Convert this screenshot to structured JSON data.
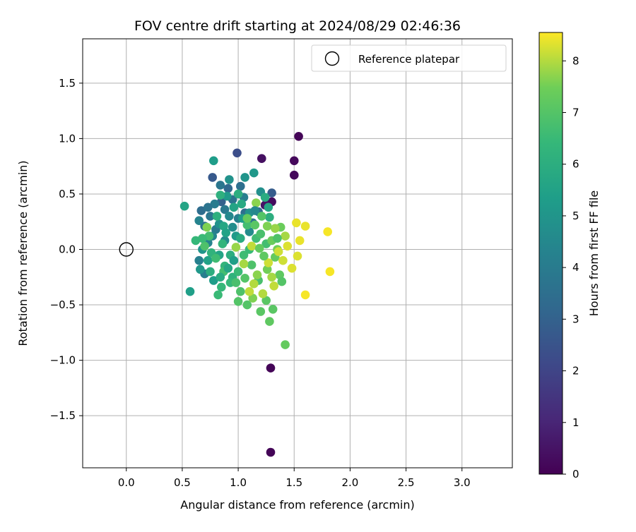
{
  "chart_data": {
    "type": "scatter",
    "title": "FOV centre drift starting at 2024/08/29 02:46:36",
    "xlabel": "Angular distance from reference (arcmin)",
    "ylabel": "Rotation from reference (arcmin)",
    "xlim": [
      -0.39,
      3.45
    ],
    "ylim": [
      -1.97,
      1.9
    ],
    "xticks": [
      "0.0",
      "0.5",
      "1.0",
      "1.5",
      "2.0",
      "2.5",
      "3.0"
    ],
    "yticks": [
      "1.5",
      "1.0",
      "0.5",
      "0.0",
      "−0.5",
      "−1.0",
      "−1.5"
    ],
    "grid": true,
    "legend": {
      "position": "top-right",
      "entries": [
        "Reference platepar"
      ]
    },
    "reference_point": {
      "x": 0.0,
      "y": 0.0
    },
    "colorbar": {
      "label": "Hours from first FF file",
      "range": [
        0,
        8.55
      ],
      "ticks": [
        "0",
        "1",
        "2",
        "3",
        "4",
        "5",
        "6",
        "7",
        "8"
      ],
      "colormap": "viridis"
    },
    "points": [
      [
        1.54,
        1.02,
        0.1
      ],
      [
        1.5,
        0.8,
        0.2
      ],
      [
        1.5,
        0.67,
        0.2
      ],
      [
        1.21,
        0.82,
        0.4
      ],
      [
        1.3,
        0.43,
        0.3
      ],
      [
        1.24,
        0.4,
        0.5
      ],
      [
        1.29,
        -1.07,
        0.1
      ],
      [
        1.29,
        -1.83,
        0.1
      ],
      [
        0.99,
        0.87,
        2.3
      ],
      [
        0.77,
        0.65,
        2.7
      ],
      [
        1.3,
        0.51,
        2.8
      ],
      [
        0.91,
        0.55,
        3.2
      ],
      [
        0.85,
        0.43,
        3.0
      ],
      [
        1.02,
        0.57,
        3.5
      ],
      [
        1.18,
        0.34,
        3.3
      ],
      [
        0.67,
        0.35,
        3.4
      ],
      [
        0.95,
        0.45,
        3.6
      ],
      [
        1.06,
        0.33,
        3.4
      ],
      [
        1.13,
        0.24,
        3.7
      ],
      [
        0.7,
        0.21,
        3.6
      ],
      [
        0.75,
        0.3,
        3.8
      ],
      [
        0.88,
        0.36,
        3.9
      ],
      [
        0.8,
        0.18,
        4.0
      ],
      [
        1.05,
        0.47,
        4.1
      ],
      [
        1.0,
        0.28,
        4.2
      ],
      [
        0.65,
        0.26,
        4.3
      ],
      [
        0.73,
        0.06,
        4.3
      ],
      [
        0.65,
        -0.1,
        4.2
      ],
      [
        0.7,
        -0.22,
        4.1
      ],
      [
        0.77,
        0.12,
        4.4
      ],
      [
        0.92,
        0.3,
        4.5
      ],
      [
        0.88,
        0.08,
        4.6
      ],
      [
        0.95,
        0.2,
        4.7
      ],
      [
        1.1,
        0.16,
        4.6
      ],
      [
        1.2,
        0.52,
        4.8
      ],
      [
        0.92,
        0.63,
        4.9
      ],
      [
        1.06,
        0.65,
        5.0
      ],
      [
        1.14,
        0.69,
        5.1
      ],
      [
        0.78,
        0.8,
        5.3
      ],
      [
        0.83,
        0.23,
        4.9
      ],
      [
        0.9,
        0.48,
        5.2
      ],
      [
        0.98,
        0.12,
        5.2
      ],
      [
        0.68,
        0.0,
        5.0
      ],
      [
        0.66,
        -0.18,
        5.1
      ],
      [
        0.78,
        -0.28,
        5.3
      ],
      [
        0.57,
        -0.38,
        5.4
      ],
      [
        0.52,
        0.39,
        5.6
      ],
      [
        0.73,
        -0.1,
        5.5
      ],
      [
        0.83,
        -0.05,
        5.6
      ],
      [
        0.87,
        0.21,
        5.7
      ],
      [
        0.96,
        0.38,
        5.6
      ],
      [
        1.03,
        0.41,
        5.8
      ],
      [
        1.27,
        0.38,
        5.7
      ],
      [
        1.24,
        0.47,
        5.9
      ],
      [
        1.28,
        0.29,
        6.0
      ],
      [
        0.84,
        0.49,
        6.1
      ],
      [
        1.0,
        0.5,
        6.0
      ],
      [
        0.81,
        0.3,
        6.1
      ],
      [
        0.76,
        -0.03,
        6.2
      ],
      [
        0.88,
        -0.15,
        6.3
      ],
      [
        0.95,
        -0.25,
        6.2
      ],
      [
        0.85,
        -0.34,
        6.4
      ],
      [
        0.82,
        -0.41,
        6.5
      ],
      [
        0.93,
        -0.3,
        6.4
      ],
      [
        1.0,
        -0.2,
        6.5
      ],
      [
        1.05,
        -0.05,
        6.6
      ],
      [
        1.1,
        0.0,
        6.5
      ],
      [
        1.16,
        0.1,
        6.6
      ],
      [
        1.08,
        0.22,
        6.7
      ],
      [
        1.2,
        0.14,
        6.8
      ],
      [
        1.25,
        0.05,
        6.7
      ],
      [
        1.12,
        -0.14,
        6.9
      ],
      [
        1.18,
        -0.28,
        6.8
      ],
      [
        1.02,
        -0.38,
        6.9
      ],
      [
        1.0,
        -0.47,
        7.0
      ],
      [
        1.08,
        -0.5,
        7.0
      ],
      [
        1.2,
        -0.56,
        7.1
      ],
      [
        1.25,
        -0.46,
        7.1
      ],
      [
        1.28,
        -0.65,
        7.2
      ],
      [
        1.31,
        -0.54,
        7.1
      ],
      [
        1.42,
        -0.86,
        7.3
      ],
      [
        1.37,
        -0.23,
        7.2
      ],
      [
        1.33,
        -0.07,
        7.3
      ],
      [
        1.3,
        0.08,
        7.4
      ],
      [
        1.38,
        0.2,
        7.4
      ],
      [
        1.35,
        0.0,
        7.5
      ],
      [
        1.26,
        -0.18,
        7.5
      ],
      [
        1.13,
        -0.44,
        7.6
      ],
      [
        1.16,
        0.42,
        7.7
      ],
      [
        1.33,
        0.19,
        7.8
      ],
      [
        1.3,
        -0.25,
        7.9
      ],
      [
        1.22,
        -0.4,
        8.0
      ],
      [
        1.14,
        -0.31,
        8.0
      ],
      [
        1.1,
        -0.38,
        8.1
      ],
      [
        1.32,
        -0.33,
        8.1
      ],
      [
        1.27,
        -0.12,
        8.2
      ],
      [
        1.4,
        -0.1,
        8.2
      ],
      [
        1.48,
        -0.17,
        8.3
      ],
      [
        1.53,
        -0.06,
        8.3
      ],
      [
        1.55,
        0.08,
        8.4
      ],
      [
        1.52,
        0.24,
        8.4
      ],
      [
        1.6,
        0.21,
        8.4
      ],
      [
        1.8,
        0.16,
        8.5
      ],
      [
        1.82,
        -0.2,
        8.5
      ],
      [
        1.6,
        -0.41,
        8.5
      ],
      [
        1.44,
        0.03,
        8.3
      ],
      [
        1.36,
        -0.02,
        8.2
      ],
      [
        1.12,
        0.03,
        8.1
      ],
      [
        1.05,
        -0.13,
        7.9
      ],
      [
        0.98,
        0.02,
        7.8
      ],
      [
        1.17,
        -0.23,
        7.7
      ],
      [
        0.72,
        0.2,
        7.6
      ],
      [
        0.7,
        0.03,
        6.9
      ],
      [
        0.74,
        0.12,
        6.7
      ],
      [
        0.8,
        -0.08,
        6.6
      ],
      [
        0.86,
        0.05,
        6.3
      ],
      [
        0.93,
        -0.05,
        6.0
      ],
      [
        1.02,
        0.1,
        5.9
      ],
      [
        0.89,
        0.15,
        5.5
      ],
      [
        0.96,
        -0.1,
        5.4
      ],
      [
        1.04,
        0.28,
        5.3
      ],
      [
        1.1,
        0.33,
        4.9
      ],
      [
        1.15,
        0.35,
        4.5
      ],
      [
        0.79,
        0.41,
        4.0
      ],
      [
        0.84,
        0.58,
        3.8
      ],
      [
        0.73,
        0.38,
        3.7
      ],
      [
        0.87,
        -0.2,
        6.7
      ],
      [
        0.98,
        -0.3,
        6.8
      ],
      [
        1.06,
        -0.26,
        7.0
      ],
      [
        1.23,
        -0.06,
        7.2
      ],
      [
        1.19,
        0.01,
        7.3
      ],
      [
        1.26,
        0.21,
        7.6
      ],
      [
        1.42,
        0.12,
        7.9
      ],
      [
        1.39,
        -0.29,
        7.0
      ],
      [
        1.35,
        0.1,
        6.9
      ],
      [
        1.15,
        0.22,
        7.1
      ],
      [
        1.08,
        0.28,
        7.3
      ],
      [
        1.21,
        0.3,
        7.0
      ],
      [
        0.68,
        0.1,
        6.5
      ],
      [
        0.62,
        0.08,
        6.4
      ],
      [
        0.75,
        -0.2,
        6.0
      ],
      [
        0.84,
        -0.25,
        5.9
      ],
      [
        0.91,
        -0.17,
        5.7
      ]
    ]
  }
}
